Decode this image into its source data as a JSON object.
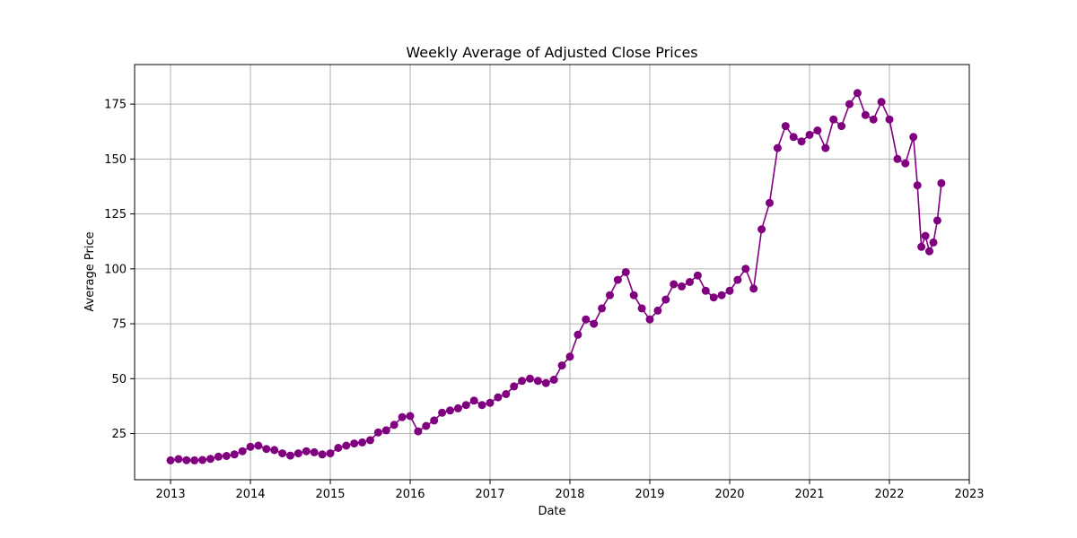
{
  "chart_data": {
    "type": "line",
    "title": "Weekly Average of Adjusted Close Prices",
    "xlabel": "Date",
    "ylabel": "Average Price",
    "xlim": [
      2012.55,
      2023.0
    ],
    "ylim": [
      4,
      193
    ],
    "x_ticks": [
      2013,
      2014,
      2015,
      2016,
      2017,
      2018,
      2019,
      2020,
      2021,
      2022,
      2023
    ],
    "x_tick_labels": [
      "2013",
      "2014",
      "2015",
      "2016",
      "2017",
      "2018",
      "2019",
      "2020",
      "2021",
      "2022",
      "2023"
    ],
    "y_ticks": [
      25,
      50,
      75,
      100,
      125,
      150,
      175
    ],
    "y_tick_labels": [
      "25",
      "50",
      "75",
      "100",
      "125",
      "150",
      "175"
    ],
    "grid": true,
    "line_color": "#800080",
    "marker": "circle",
    "series": [
      {
        "points": [
          [
            2013.0,
            12.8
          ],
          [
            2013.1,
            13.4
          ],
          [
            2013.2,
            12.9
          ],
          [
            2013.3,
            12.8
          ],
          [
            2013.4,
            13.0
          ],
          [
            2013.5,
            13.5
          ],
          [
            2013.6,
            14.5
          ],
          [
            2013.7,
            14.8
          ],
          [
            2013.8,
            15.5
          ],
          [
            2013.9,
            17.0
          ],
          [
            2014.0,
            19.0
          ],
          [
            2014.1,
            19.5
          ],
          [
            2014.2,
            18.0
          ],
          [
            2014.3,
            17.5
          ],
          [
            2014.4,
            16.0
          ],
          [
            2014.5,
            15.0
          ],
          [
            2014.6,
            16.0
          ],
          [
            2014.7,
            17.0
          ],
          [
            2014.8,
            16.5
          ],
          [
            2014.9,
            15.5
          ],
          [
            2015.0,
            16.0
          ],
          [
            2015.1,
            18.5
          ],
          [
            2015.2,
            19.5
          ],
          [
            2015.3,
            20.5
          ],
          [
            2015.4,
            21.0
          ],
          [
            2015.5,
            22.0
          ],
          [
            2015.6,
            25.5
          ],
          [
            2015.7,
            26.5
          ],
          [
            2015.8,
            29.0
          ],
          [
            2015.9,
            32.5
          ],
          [
            2016.0,
            33.0
          ],
          [
            2016.1,
            26.0
          ],
          [
            2016.2,
            28.5
          ],
          [
            2016.3,
            31.0
          ],
          [
            2016.4,
            34.5
          ],
          [
            2016.5,
            35.5
          ],
          [
            2016.6,
            36.5
          ],
          [
            2016.7,
            38.0
          ],
          [
            2016.8,
            40.0
          ],
          [
            2016.9,
            38.0
          ],
          [
            2017.0,
            39.0
          ],
          [
            2017.1,
            41.5
          ],
          [
            2017.2,
            43.0
          ],
          [
            2017.3,
            46.5
          ],
          [
            2017.4,
            49.0
          ],
          [
            2017.5,
            50.0
          ],
          [
            2017.6,
            49.0
          ],
          [
            2017.7,
            48.0
          ],
          [
            2017.8,
            49.5
          ],
          [
            2017.9,
            56.0
          ],
          [
            2018.0,
            60.0
          ],
          [
            2018.1,
            70.0
          ],
          [
            2018.2,
            77.0
          ],
          [
            2018.3,
            75.0
          ],
          [
            2018.4,
            82.0
          ],
          [
            2018.5,
            88.0
          ],
          [
            2018.6,
            95.0
          ],
          [
            2018.7,
            98.5
          ],
          [
            2018.8,
            88.0
          ],
          [
            2018.9,
            82.0
          ],
          [
            2019.0,
            77.0
          ],
          [
            2019.1,
            81.0
          ],
          [
            2019.2,
            86.0
          ],
          [
            2019.3,
            93.0
          ],
          [
            2019.4,
            92.0
          ],
          [
            2019.5,
            94.0
          ],
          [
            2019.6,
            97.0
          ],
          [
            2019.7,
            90.0
          ],
          [
            2019.8,
            87.0
          ],
          [
            2019.9,
            88.0
          ],
          [
            2020.0,
            90.0
          ],
          [
            2020.1,
            95.0
          ],
          [
            2020.2,
            100.0
          ],
          [
            2020.3,
            91.0
          ],
          [
            2020.4,
            118.0
          ],
          [
            2020.5,
            130.0
          ],
          [
            2020.6,
            155.0
          ],
          [
            2020.7,
            165.0
          ],
          [
            2020.8,
            160.0
          ],
          [
            2020.9,
            158.0
          ],
          [
            2021.0,
            161.0
          ],
          [
            2021.1,
            163.0
          ],
          [
            2021.2,
            155.0
          ],
          [
            2021.3,
            168.0
          ],
          [
            2021.4,
            165.0
          ],
          [
            2021.5,
            175.0
          ],
          [
            2021.6,
            180.0
          ],
          [
            2021.7,
            170.0
          ],
          [
            2021.8,
            168.0
          ],
          [
            2021.9,
            176.0
          ],
          [
            2022.0,
            168.0
          ],
          [
            2022.1,
            150.0
          ],
          [
            2022.2,
            148.0
          ],
          [
            2022.3,
            160.0
          ],
          [
            2022.35,
            138.0
          ],
          [
            2022.4,
            110.0
          ],
          [
            2022.45,
            115.0
          ],
          [
            2022.5,
            108.0
          ],
          [
            2022.55,
            112.0
          ],
          [
            2022.6,
            122.0
          ],
          [
            2022.65,
            139.0
          ]
        ]
      }
    ]
  }
}
